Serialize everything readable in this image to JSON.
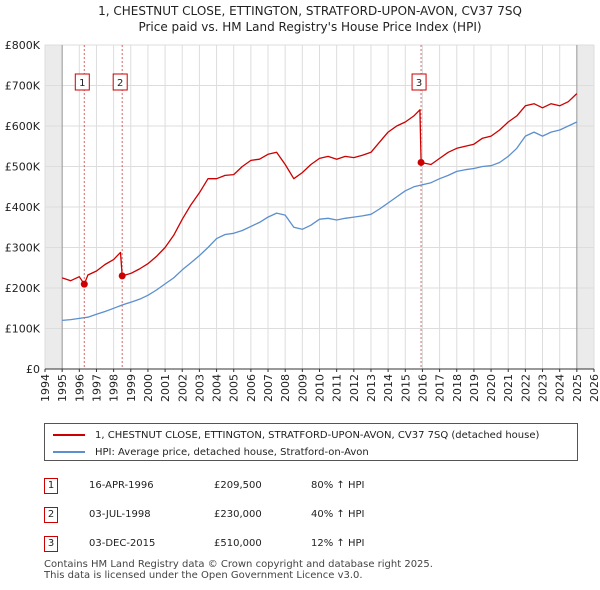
{
  "chart_data": {
    "type": "line",
    "title": "1, CHESTNUT CLOSE, ETTINGTON, STRATFORD-UPON-AVON, CV37 7SQ",
    "subtitle": "Price paid vs. HM Land Registry's House Price Index (HPI)",
    "xlabel": "",
    "ylabel": "",
    "xlim": [
      1994,
      2026
    ],
    "ylim": [
      0,
      800000
    ],
    "x_ticks": [
      "1994",
      "1995",
      "1996",
      "1997",
      "1998",
      "1999",
      "2000",
      "2001",
      "2002",
      "2003",
      "2004",
      "2005",
      "2006",
      "2007",
      "2008",
      "2009",
      "2010",
      "2011",
      "2012",
      "2013",
      "2014",
      "2015",
      "2016",
      "2017",
      "2018",
      "2019",
      "2020",
      "2021",
      "2022",
      "2023",
      "2024",
      "2025",
      "2026"
    ],
    "y_ticks": [
      {
        "value": 0,
        "label": "£0"
      },
      {
        "value": 100000,
        "label": "£100K"
      },
      {
        "value": 200000,
        "label": "£200K"
      },
      {
        "value": 300000,
        "label": "£300K"
      },
      {
        "value": 400000,
        "label": "£400K"
      },
      {
        "value": 500000,
        "label": "£500K"
      },
      {
        "value": 600000,
        "label": "£600K"
      },
      {
        "value": 700000,
        "label": "£700K"
      },
      {
        "value": 800000,
        "label": "£800K"
      }
    ],
    "grid": true,
    "legend_position": "below",
    "shaded_x_ranges": [
      [
        1994,
        1995
      ],
      [
        2025.0,
        2026
      ]
    ],
    "series": [
      {
        "name": "1, CHESTNUT CLOSE, ETTINGTON, STRATFORD-UPON-AVON, CV37 7SQ (detached house)",
        "color": "#cc0000",
        "x": [
          1995.0,
          1995.5,
          1996.0,
          1996.29,
          1996.5,
          1997.0,
          1997.5,
          1998.0,
          1998.4,
          1998.5,
          1999.0,
          1999.5,
          2000.0,
          2000.5,
          2001.0,
          2001.5,
          2002.0,
          2002.5,
          2003.0,
          2003.5,
          2004.0,
          2004.5,
          2005.0,
          2005.5,
          2006.0,
          2006.5,
          2007.0,
          2007.5,
          2008.0,
          2008.5,
          2009.0,
          2009.5,
          2010.0,
          2010.5,
          2011.0,
          2011.5,
          2012.0,
          2012.5,
          2013.0,
          2013.5,
          2014.0,
          2014.5,
          2015.0,
          2015.5,
          2015.85,
          2015.92,
          2016.5,
          2017.0,
          2017.5,
          2018.0,
          2018.5,
          2019.0,
          2019.5,
          2020.0,
          2020.5,
          2021.0,
          2021.5,
          2022.0,
          2022.5,
          2023.0,
          2023.5,
          2024.0,
          2024.5,
          2025.0
        ],
        "values": [
          225000,
          218000,
          228000,
          209500,
          232000,
          242000,
          258000,
          270000,
          288000,
          230000,
          236000,
          247000,
          260000,
          278000,
          300000,
          330000,
          370000,
          405000,
          435000,
          470000,
          470000,
          478000,
          480000,
          500000,
          515000,
          518000,
          530000,
          535000,
          505000,
          470000,
          485000,
          505000,
          520000,
          525000,
          518000,
          525000,
          522000,
          528000,
          535000,
          560000,
          585000,
          600000,
          610000,
          625000,
          640000,
          510000,
          505000,
          520000,
          535000,
          545000,
          550000,
          555000,
          570000,
          575000,
          590000,
          610000,
          625000,
          650000,
          655000,
          645000,
          655000,
          650000,
          660000,
          680000
        ]
      },
      {
        "name": "HPI: Average price, detached house, Stratford-on-Avon",
        "color": "#5b8fcf",
        "x": [
          1995.0,
          1995.5,
          1996.0,
          1996.5,
          1997.0,
          1997.5,
          1998.0,
          1998.5,
          1999.0,
          1999.5,
          2000.0,
          2000.5,
          2001.0,
          2001.5,
          2002.0,
          2002.5,
          2003.0,
          2003.5,
          2004.0,
          2004.5,
          2005.0,
          2005.5,
          2006.0,
          2006.5,
          2007.0,
          2007.5,
          2008.0,
          2008.5,
          2009.0,
          2009.5,
          2010.0,
          2010.5,
          2011.0,
          2011.5,
          2012.0,
          2012.5,
          2013.0,
          2013.5,
          2014.0,
          2014.5,
          2015.0,
          2015.5,
          2016.0,
          2016.5,
          2017.0,
          2017.5,
          2018.0,
          2018.5,
          2019.0,
          2019.5,
          2020.0,
          2020.5,
          2021.0,
          2021.5,
          2022.0,
          2022.5,
          2023.0,
          2023.5,
          2024.0,
          2024.5,
          2025.0
        ],
        "values": [
          120000,
          122000,
          125000,
          128000,
          135000,
          142000,
          150000,
          158000,
          165000,
          172000,
          182000,
          195000,
          210000,
          225000,
          245000,
          262000,
          280000,
          300000,
          322000,
          332000,
          335000,
          342000,
          352000,
          362000,
          375000,
          385000,
          380000,
          350000,
          345000,
          355000,
          370000,
          372000,
          368000,
          372000,
          375000,
          378000,
          382000,
          395000,
          410000,
          425000,
          440000,
          450000,
          455000,
          460000,
          470000,
          478000,
          488000,
          492000,
          495000,
          500000,
          502000,
          510000,
          525000,
          545000,
          575000,
          585000,
          575000,
          585000,
          590000,
          600000,
          610000
        ]
      }
    ],
    "annotations": [
      {
        "label": "1",
        "x": 1996.29,
        "value": 209500
      },
      {
        "label": "2",
        "x": 1998.5,
        "value": 230000
      },
      {
        "label": "3",
        "x": 2015.92,
        "value": 510000
      }
    ]
  },
  "legend": {
    "property_label": "1, CHESTNUT CLOSE, ETTINGTON, STRATFORD-UPON-AVON, CV37 7SQ (detached house)",
    "hpi_label": "HPI: Average price, detached house, Stratford-on-Avon"
  },
  "sales": [
    {
      "num": "1",
      "date": "16-APR-1996",
      "price": "£209,500",
      "hpi": "80% ↑ HPI"
    },
    {
      "num": "2",
      "date": "03-JUL-1998",
      "price": "£230,000",
      "hpi": "40% ↑ HPI"
    },
    {
      "num": "3",
      "date": "03-DEC-2015",
      "price": "£510,000",
      "hpi": "12% ↑ HPI"
    }
  ],
  "footer": {
    "line1": "Contains HM Land Registry data © Crown copyright and database right 2025.",
    "line2": "This data is licensed under the Open Government Licence v3.0."
  },
  "colors": {
    "property": "#cc0000",
    "hpi": "#5b8fcf",
    "grid": "#dddddd",
    "shade": "#ebebeb"
  }
}
